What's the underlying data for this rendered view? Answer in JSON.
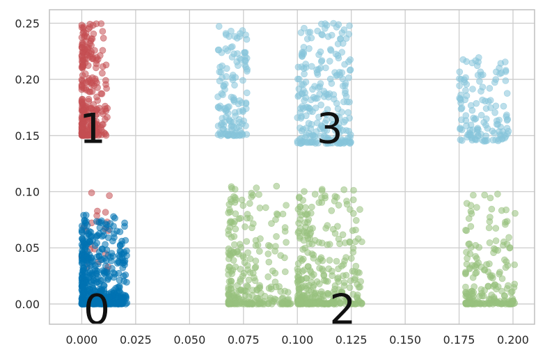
{
  "chart_data": {
    "type": "scatter",
    "title": "",
    "xlabel": "",
    "ylabel": "",
    "xlim": [
      -0.015,
      0.21
    ],
    "ylim": [
      -0.018,
      0.262
    ],
    "grid": true,
    "x_ticks": [
      0.0,
      0.025,
      0.05,
      0.075,
      0.1,
      0.125,
      0.15,
      0.175,
      0.2
    ],
    "x_tick_labels": [
      "0.000",
      "0.025",
      "0.050",
      "0.075",
      "0.100",
      "0.125",
      "0.150",
      "0.175",
      "0.200"
    ],
    "y_ticks": [
      0.0,
      0.05,
      0.1,
      0.15,
      0.2,
      0.25
    ],
    "y_tick_labels": [
      "0.00",
      "0.05",
      "0.10",
      "0.15",
      "0.20",
      "0.25"
    ],
    "colors": {
      "red": "#c44e52",
      "blue": "#0072b2",
      "lightblue": "#86c5da",
      "green": "#98c17d",
      "grid": "#cccccc",
      "frame": "#bfbfbf"
    },
    "cluster_labels": [
      {
        "text": "0",
        "x": 0.007,
        "y": -0.004
      },
      {
        "text": "1",
        "x": 0.005,
        "y": 0.157
      },
      {
        "text": "2",
        "x": 0.121,
        "y": -0.004
      },
      {
        "text": "3",
        "x": 0.115,
        "y": 0.157
      }
    ],
    "series": [
      {
        "color": "red",
        "groups": [
          {
            "xmin": 0.0,
            "xmax": 0.012,
            "ymin": 0.15,
            "ymax": 0.25,
            "n": 280,
            "xpow": 2.5,
            "ypow": 2.0
          },
          {
            "xmin": 0.0,
            "xmax": 0.013,
            "ymin": 0.03,
            "ymax": 0.1,
            "n": 25,
            "xpow": 1.5,
            "ypow": 1.5
          }
        ]
      },
      {
        "color": "blue",
        "groups": [
          {
            "xmin": 0.0,
            "xmax": 0.021,
            "ymin": 0.0,
            "ymax": 0.08,
            "n": 500,
            "xpow": 1.8,
            "ypow": 2.5
          }
        ]
      },
      {
        "color": "lightblue",
        "groups": [
          {
            "xmin": 0.063,
            "xmax": 0.077,
            "ymin": 0.15,
            "ymax": 0.25,
            "n": 140,
            "xpow": 1.0,
            "ypow": 2.0
          },
          {
            "xmin": 0.1,
            "xmax": 0.125,
            "ymin": 0.143,
            "ymax": 0.25,
            "n": 240,
            "xpow": 1.0,
            "ypow": 2.0
          },
          {
            "xmin": 0.175,
            "xmax": 0.198,
            "ymin": 0.145,
            "ymax": 0.22,
            "n": 130,
            "xpow": 1.4,
            "ypow": 2.0
          }
        ]
      },
      {
        "color": "green",
        "groups": [
          {
            "xmin": 0.068,
            "xmax": 0.097,
            "ymin": 0.0,
            "ymax": 0.106,
            "n": 260,
            "xpow": 1.8,
            "ypow": 3.0
          },
          {
            "xmin": 0.1,
            "xmax": 0.13,
            "ymin": 0.0,
            "ymax": 0.103,
            "n": 330,
            "xpow": 1.5,
            "ypow": 3.0
          },
          {
            "xmin": 0.178,
            "xmax": 0.201,
            "ymin": 0.0,
            "ymax": 0.098,
            "n": 200,
            "xpow": 1.4,
            "ypow": 3.0
          }
        ]
      }
    ]
  }
}
